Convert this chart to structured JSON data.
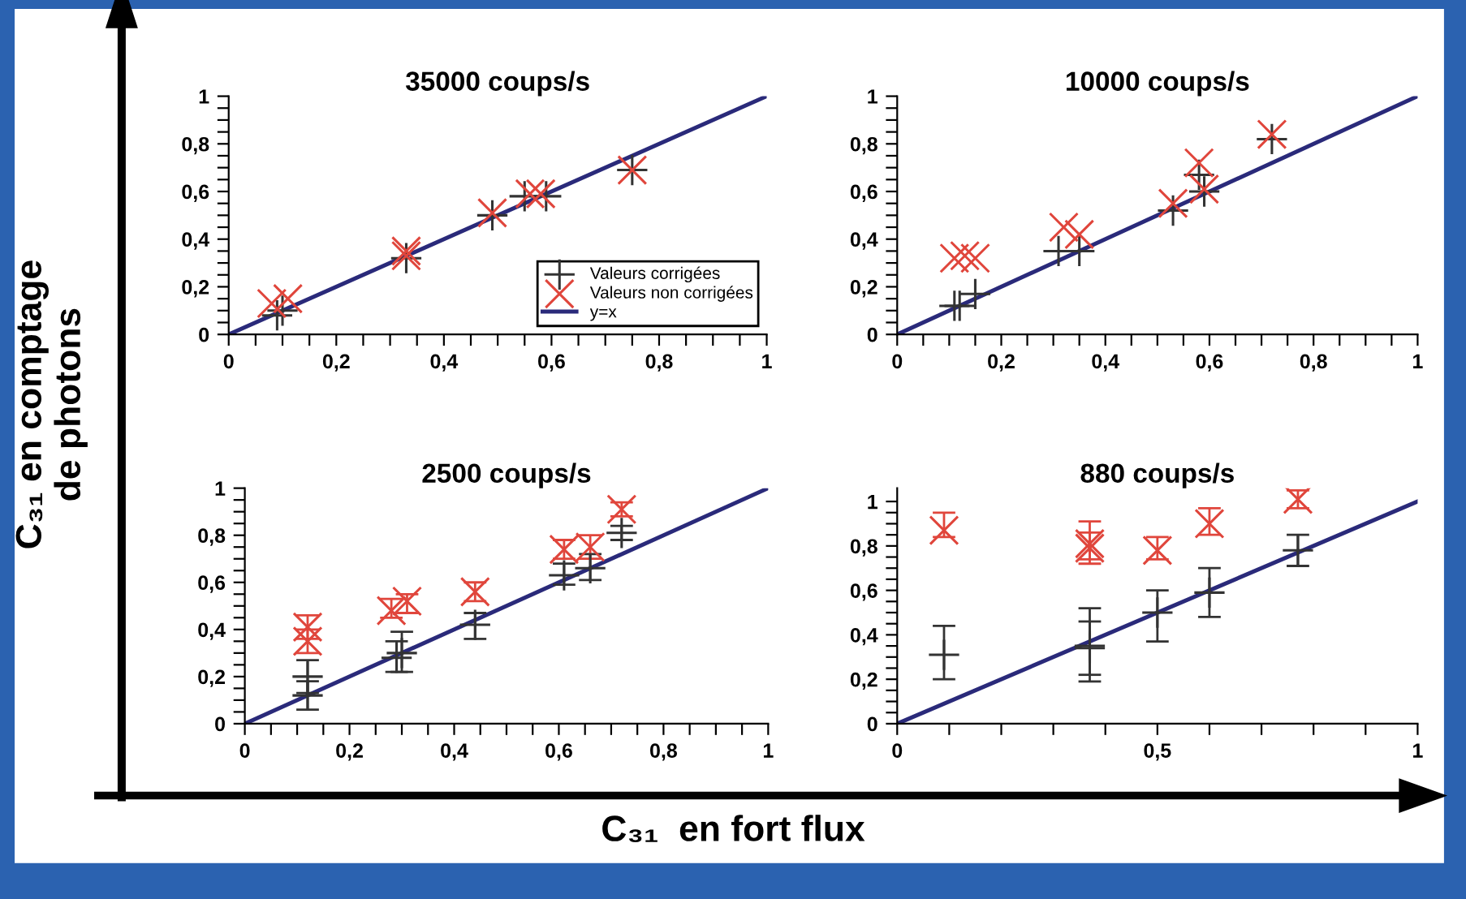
{
  "chart_data": [
    {
      "type": "scatter",
      "title": "35000 coups/s",
      "xlabel": "C₃₁  en fort flux",
      "ylabel": "C₃₁ en comptage\nde photons",
      "legend": "bottom right",
      "xlim": [
        0,
        1
      ],
      "ylim": [
        0,
        1
      ],
      "xticks": [
        0,
        {
          "value": 0.05,
          "label": null
        },
        {
          "value": 0.1,
          "label": null
        },
        {
          "value": 0.15,
          "label": null
        },
        {
          "value": 0.2,
          "label": "0,2"
        },
        {
          "value": 0.25,
          "label": null
        },
        {
          "value": 0.3,
          "label": null
        },
        {
          "value": 0.35,
          "label": null
        },
        {
          "value": 0.4,
          "label": "0,4"
        },
        {
          "value": 0.45,
          "label": null
        },
        {
          "value": 0.5,
          "label": null
        },
        {
          "value": 0.55,
          "label": null
        },
        {
          "value": 0.6,
          "label": "0,6"
        },
        {
          "value": 0.65,
          "label": null
        },
        {
          "value": 0.7,
          "label": null
        },
        {
          "value": 0.75,
          "label": null
        },
        {
          "value": 0.8,
          "label": "0,8"
        },
        {
          "value": 0.85,
          "label": null
        },
        {
          "value": 0.9,
          "label": null
        },
        {
          "value": 0.95,
          "label": null
        },
        1
      ],
      "yticks": [
        0,
        {
          "value": 0.05,
          "label": null
        },
        {
          "value": 0.1,
          "label": null
        },
        {
          "value": 0.15,
          "label": null
        },
        {
          "value": 0.2,
          "label": "0,2"
        },
        {
          "value": 0.25,
          "label": null
        },
        {
          "value": 0.3,
          "label": null
        },
        {
          "value": 0.35,
          "label": null
        },
        {
          "value": 0.4,
          "label": "0,4"
        },
        {
          "value": 0.45,
          "label": null
        },
        {
          "value": 0.5,
          "label": null
        },
        {
          "value": 0.55,
          "label": null
        },
        {
          "value": 0.6,
          "label": "0,6"
        },
        {
          "value": 0.65,
          "label": null
        },
        {
          "value": 0.7,
          "label": null
        },
        {
          "value": 0.75,
          "label": null
        },
        {
          "value": 0.8,
          "label": "0,8"
        },
        {
          "value": 0.85,
          "label": null
        },
        {
          "value": 0.9,
          "label": null
        },
        {
          "value": 0.95,
          "label": null
        },
        1
      ],
      "series": [
        {
          "name": "Valeurs corrigées",
          "color": "#333333",
          "marker": "plus",
          "x": [
            0.09,
            0.1,
            0.33,
            0.49,
            0.55,
            0.59,
            0.75
          ],
          "values": [
            0.08,
            0.1,
            0.32,
            0.5,
            0.58,
            0.58,
            0.69
          ]
        },
        {
          "name": "Valeurs non corrigées",
          "color": "#e0463c",
          "marker": "cross",
          "x": [
            0.08,
            0.11,
            0.33,
            0.33,
            0.49,
            0.56,
            0.58,
            0.75
          ],
          "values": [
            0.13,
            0.15,
            0.35,
            0.33,
            0.51,
            0.59,
            0.59,
            0.69
          ]
        },
        {
          "name": "y=x",
          "type": "line",
          "color": "#2a2a7a",
          "x": [
            0,
            1
          ],
          "values": [
            0,
            1
          ]
        }
      ]
    },
    {
      "type": "scatter",
      "title": "10000 coups/s",
      "xlim": [
        0,
        1
      ],
      "ylim": [
        0,
        1
      ],
      "xticks": [
        0,
        {
          "value": 0.05,
          "label": null
        },
        {
          "value": 0.1,
          "label": null
        },
        {
          "value": 0.15,
          "label": null
        },
        {
          "value": 0.2,
          "label": "0,2"
        },
        {
          "value": 0.25,
          "label": null
        },
        {
          "value": 0.3,
          "label": null
        },
        {
          "value": 0.35,
          "label": null
        },
        {
          "value": 0.4,
          "label": "0,4"
        },
        {
          "value": 0.45,
          "label": null
        },
        {
          "value": 0.5,
          "label": null
        },
        {
          "value": 0.55,
          "label": null
        },
        {
          "value": 0.6,
          "label": "0,6"
        },
        {
          "value": 0.65,
          "label": null
        },
        {
          "value": 0.7,
          "label": null
        },
        {
          "value": 0.75,
          "label": null
        },
        {
          "value": 0.8,
          "label": "0,8"
        },
        {
          "value": 0.85,
          "label": null
        },
        {
          "value": 0.9,
          "label": null
        },
        {
          "value": 0.95,
          "label": null
        },
        1
      ],
      "yticks": [
        0,
        {
          "value": 0.05,
          "label": null
        },
        {
          "value": 0.1,
          "label": null
        },
        {
          "value": 0.15,
          "label": null
        },
        {
          "value": 0.2,
          "label": "0,2"
        },
        {
          "value": 0.25,
          "label": null
        },
        {
          "value": 0.3,
          "label": null
        },
        {
          "value": 0.35,
          "label": null
        },
        {
          "value": 0.4,
          "label": "0,4"
        },
        {
          "value": 0.45,
          "label": null
        },
        {
          "value": 0.5,
          "label": null
        },
        {
          "value": 0.55,
          "label": null
        },
        {
          "value": 0.6,
          "label": "0,6"
        },
        {
          "value": 0.65,
          "label": null
        },
        {
          "value": 0.7,
          "label": null
        },
        {
          "value": 0.75,
          "label": null
        },
        {
          "value": 0.8,
          "label": "0,8"
        },
        {
          "value": 0.85,
          "label": null
        },
        {
          "value": 0.9,
          "label": null
        },
        {
          "value": 0.95,
          "label": null
        },
        1
      ],
      "series": [
        {
          "color": "#333333",
          "marker": "plus",
          "x": [
            0.11,
            0.12,
            0.15,
            0.31,
            0.35,
            0.53,
            0.58,
            0.59,
            0.72
          ],
          "values": [
            0.12,
            0.12,
            0.17,
            0.35,
            0.35,
            0.52,
            0.67,
            0.6,
            0.82
          ]
        },
        {
          "color": "#e0463c",
          "marker": "cross",
          "x": [
            0.11,
            0.13,
            0.15,
            0.32,
            0.35,
            0.53,
            0.58,
            0.59,
            0.72
          ],
          "values": [
            0.32,
            0.33,
            0.32,
            0.45,
            0.42,
            0.55,
            0.72,
            0.61,
            0.84
          ]
        },
        {
          "type": "line",
          "color": "#2a2a7a",
          "x": [
            0,
            1
          ],
          "values": [
            0,
            1
          ]
        }
      ]
    },
    {
      "type": "scatter",
      "title": "2500 coups/s",
      "xlim": [
        0,
        1
      ],
      "ylim": [
        0,
        1
      ],
      "xticks": [
        0,
        {
          "value": 0.05,
          "label": null
        },
        {
          "value": 0.1,
          "label": null
        },
        {
          "value": 0.15,
          "label": null
        },
        {
          "value": 0.2,
          "label": "0,2"
        },
        {
          "value": 0.25,
          "label": null
        },
        {
          "value": 0.3,
          "label": null
        },
        {
          "value": 0.35,
          "label": null
        },
        {
          "value": 0.4,
          "label": "0,4"
        },
        {
          "value": 0.45,
          "label": null
        },
        {
          "value": 0.5,
          "label": null
        },
        {
          "value": 0.55,
          "label": null
        },
        {
          "value": 0.6,
          "label": "0,6"
        },
        {
          "value": 0.65,
          "label": null
        },
        {
          "value": 0.7,
          "label": null
        },
        {
          "value": 0.75,
          "label": null
        },
        {
          "value": 0.8,
          "label": "0,8"
        },
        {
          "value": 0.85,
          "label": null
        },
        {
          "value": 0.9,
          "label": null
        },
        {
          "value": 0.95,
          "label": null
        },
        1
      ],
      "yticks": [
        0,
        {
          "value": 0.05,
          "label": null
        },
        {
          "value": 0.1,
          "label": null
        },
        {
          "value": 0.15,
          "label": null
        },
        {
          "value": 0.2,
          "label": "0,2"
        },
        {
          "value": 0.25,
          "label": null
        },
        {
          "value": 0.3,
          "label": null
        },
        {
          "value": 0.35,
          "label": null
        },
        {
          "value": 0.4,
          "label": "0,4"
        },
        {
          "value": 0.45,
          "label": null
        },
        {
          "value": 0.5,
          "label": null
        },
        {
          "value": 0.55,
          "label": null
        },
        {
          "value": 0.6,
          "label": "0,6"
        },
        {
          "value": 0.65,
          "label": null
        },
        {
          "value": 0.7,
          "label": null
        },
        {
          "value": 0.75,
          "label": null
        },
        {
          "value": 0.8,
          "label": "0,8"
        },
        {
          "value": 0.85,
          "label": null
        },
        {
          "value": 0.9,
          "label": null
        },
        {
          "value": 0.95,
          "label": null
        },
        1
      ],
      "series": [
        {
          "color": "#333333",
          "marker": "plus",
          "x": [
            0.12,
            0.12,
            0.29,
            0.3,
            0.44,
            0.61,
            0.66,
            0.72
          ],
          "values": [
            0.2,
            0.12,
            0.28,
            0.3,
            0.42,
            0.63,
            0.66,
            0.81
          ],
          "errors": [
            [
              0.13,
              0.27
            ],
            [
              0.06,
              0.18
            ],
            [
              0.22,
              0.35
            ],
            [
              0.22,
              0.39
            ],
            [
              0.36,
              0.47
            ],
            [
              0.59,
              0.68
            ],
            [
              0.61,
              0.72
            ],
            [
              0.78,
              0.84
            ]
          ]
        },
        {
          "color": "#e0463c",
          "marker": "cross",
          "x": [
            0.12,
            0.12,
            0.28,
            0.31,
            0.44,
            0.61,
            0.66,
            0.72
          ],
          "values": [
            0.41,
            0.35,
            0.48,
            0.52,
            0.56,
            0.74,
            0.75,
            0.91
          ],
          "errors": [
            [
              0.36,
              0.46
            ],
            [
              0.3,
              0.4
            ],
            [
              0.45,
              0.53
            ],
            [
              0.47,
              0.55
            ],
            [
              0.52,
              0.6
            ],
            [
              0.7,
              0.78
            ],
            [
              0.7,
              0.8
            ],
            [
              0.88,
              0.94
            ]
          ]
        },
        {
          "type": "line",
          "color": "#2a2a7a",
          "x": [
            0,
            1
          ],
          "values": [
            0,
            1
          ]
        }
      ]
    },
    {
      "type": "scatter",
      "title": "880 coups/s",
      "xlim": [
        0,
        1
      ],
      "ylim": [
        0,
        1.06
      ],
      "xticks": [
        0,
        {
          "value": 0.1,
          "label": null
        },
        {
          "value": 0.2,
          "label": null
        },
        {
          "value": 0.3,
          "label": null
        },
        {
          "value": 0.4,
          "label": null
        },
        {
          "value": 0.5,
          "label": "0,5"
        },
        {
          "value": 0.6,
          "label": null
        },
        {
          "value": 0.7,
          "label": null
        },
        {
          "value": 0.8,
          "label": null
        },
        {
          "value": 0.9,
          "label": null
        },
        1
      ],
      "yticks": [
        0,
        {
          "value": 0.05,
          "label": null
        },
        {
          "value": 0.1,
          "label": null
        },
        {
          "value": 0.15,
          "label": null
        },
        {
          "value": 0.2,
          "label": "0,2"
        },
        {
          "value": 0.25,
          "label": null
        },
        {
          "value": 0.3,
          "label": null
        },
        {
          "value": 0.35,
          "label": null
        },
        {
          "value": 0.4,
          "label": "0,4"
        },
        {
          "value": 0.45,
          "label": null
        },
        {
          "value": 0.5,
          "label": null
        },
        {
          "value": 0.55,
          "label": null
        },
        {
          "value": 0.6,
          "label": "0,6"
        },
        {
          "value": 0.65,
          "label": null
        },
        {
          "value": 0.7,
          "label": null
        },
        {
          "value": 0.75,
          "label": null
        },
        {
          "value": 0.8,
          "label": "0,8"
        },
        {
          "value": 0.85,
          "label": null
        },
        {
          "value": 0.9,
          "label": null
        },
        {
          "value": 0.95,
          "label": null
        },
        1
      ],
      "series": [
        {
          "color": "#333333",
          "marker": "plus",
          "x": [
            0.09,
            0.37,
            0.37,
            0.5,
            0.6,
            0.77
          ],
          "values": [
            0.31,
            0.35,
            0.34,
            0.5,
            0.59,
            0.78
          ],
          "errors": [
            [
              0.2,
              0.44
            ],
            [
              0.19,
              0.52
            ],
            [
              0.22,
              0.46
            ],
            [
              0.37,
              0.6
            ],
            [
              0.48,
              0.7
            ],
            [
              0.71,
              0.85
            ]
          ]
        },
        {
          "color": "#e0463c",
          "marker": "cross",
          "x": [
            0.09,
            0.37,
            0.37,
            0.5,
            0.6,
            0.77
          ],
          "values": [
            0.87,
            0.81,
            0.79,
            0.78,
            0.9,
            1.01
          ],
          "errors": [
            [
              0.84,
              0.95
            ],
            [
              0.72,
              0.91
            ],
            [
              0.74,
              0.86
            ],
            [
              0.74,
              0.84
            ],
            [
              0.85,
              0.97
            ],
            [
              0.97,
              1.05
            ]
          ]
        },
        {
          "type": "line",
          "color": "#2a2a7a",
          "x": [
            0,
            1
          ],
          "values": [
            0,
            1
          ]
        }
      ]
    }
  ]
}
